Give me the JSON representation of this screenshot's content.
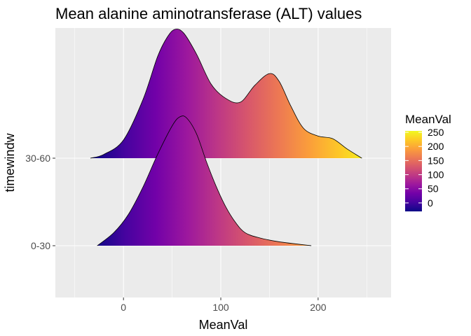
{
  "chart_data": {
    "type": "ridgeline",
    "title": "Mean alanine aminotransferase (ALT) values",
    "xlabel": "MeanVal",
    "ylabel": "timewindw",
    "xlim": [
      -70,
      275
    ],
    "x_ticks": [
      0,
      100,
      200
    ],
    "x_tick_labels": [
      "0",
      "100",
      "200"
    ],
    "categories": [
      "0-30",
      "30-60"
    ],
    "grid": true,
    "fill_gradient": {
      "variable": "MeanVal",
      "colormap": "plasma",
      "range": [
        -30,
        255
      ],
      "stops": [
        "#0d0887",
        "#46039f",
        "#7201a8",
        "#9c179e",
        "#bd3786",
        "#d8576b",
        "#ed7953",
        "#fb9f3a",
        "#fdca26",
        "#f0f921"
      ]
    },
    "series": [
      {
        "name": "30-60",
        "x": [
          -34,
          -20,
          0,
          20,
          35,
          45,
          53,
          62,
          75,
          90,
          105,
          120,
          135,
          150,
          160,
          172,
          185,
          200,
          215,
          230,
          245
        ],
        "density": [
          0.0,
          0.03,
          0.14,
          0.45,
          0.78,
          0.93,
          0.99,
          0.96,
          0.8,
          0.57,
          0.46,
          0.43,
          0.56,
          0.65,
          0.59,
          0.4,
          0.23,
          0.17,
          0.15,
          0.07,
          0.0
        ]
      },
      {
        "name": "0-30",
        "x": [
          -27,
          -10,
          5,
          20,
          35,
          50,
          58,
          65,
          75,
          85,
          95,
          105,
          115,
          125,
          140,
          160,
          193
        ],
        "density": [
          0.0,
          0.1,
          0.24,
          0.45,
          0.7,
          0.92,
          0.99,
          0.98,
          0.86,
          0.65,
          0.46,
          0.3,
          0.18,
          0.1,
          0.06,
          0.03,
          0.0
        ]
      }
    ],
    "legend": {
      "title": "MeanVal",
      "position": "right",
      "labels": [
        "250",
        "200",
        "150",
        "100",
        "50",
        "0"
      ],
      "values": [
        250,
        200,
        150,
        100,
        50,
        0
      ]
    }
  }
}
